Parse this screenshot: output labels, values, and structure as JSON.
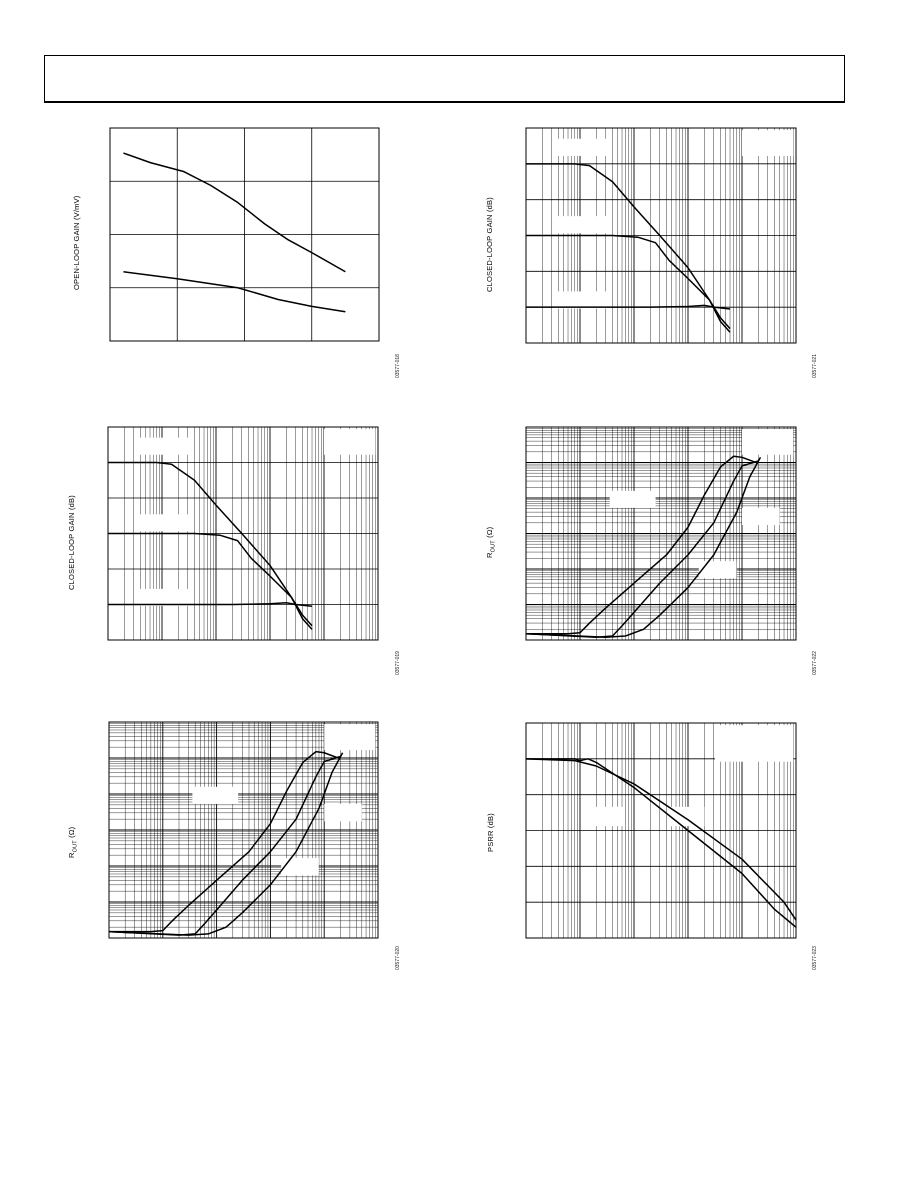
{
  "page": {
    "figure_ids": [
      "03577-018",
      "03577-019",
      "03577-020",
      "03577-021",
      "03577-022",
      "03577-023"
    ]
  },
  "chart_data": [
    {
      "id": "p1",
      "type": "line",
      "ylabel": "OPEN-LOOP GAIN (V/mV)",
      "figure_id": "03577-018",
      "xscale": "linear",
      "yscale": "linear",
      "grid": true,
      "xlim": [
        0,
        4
      ],
      "ylim": [
        0,
        4
      ],
      "xgrid": [
        1,
        2,
        3
      ],
      "ygrid": [
        1,
        2,
        3
      ],
      "series": [
        {
          "x": [
            0.2,
            0.6,
            1.1,
            1.5,
            1.9,
            2.3,
            2.65,
            3.0,
            3.5
          ],
          "y": [
            3.53,
            3.35,
            3.18,
            2.92,
            2.6,
            2.2,
            1.9,
            1.66,
            1.3
          ]
        },
        {
          "x": [
            0.2,
            1.0,
            1.9,
            2.5,
            3.0,
            3.5
          ],
          "y": [
            1.3,
            1.17,
            1.0,
            0.78,
            0.65,
            0.55
          ]
        }
      ],
      "annotation_boxes": []
    },
    {
      "id": "p2",
      "type": "line",
      "ylabel": "CLOSED-LOOP GAIN (dB)",
      "figure_id": "03577-019",
      "xscale": "log",
      "yscale": "linear",
      "grid": true,
      "xlim": [
        1000,
        100000000
      ],
      "ylim": [
        -10,
        50
      ],
      "ymajor": 10,
      "series": [
        {
          "x": [
            1000,
            8000,
            15000,
            40000,
            100000,
            300000,
            1000000,
            2500000,
            4000000,
            6000000
          ],
          "y": [
            40,
            40,
            39.5,
            35,
            28,
            20,
            11,
            2,
            -4,
            -7
          ]
        },
        {
          "x": [
            1000,
            40000,
            120000,
            250000,
            450000,
            1000000,
            2500000,
            4000000,
            6000000
          ],
          "y": [
            20,
            20,
            19.5,
            18,
            13,
            8,
            2,
            -3,
            -6
          ]
        },
        {
          "x": [
            1000,
            200000,
            1000000,
            2000000,
            3000000,
            6000000
          ],
          "y": [
            0,
            0,
            0.2,
            0.5,
            0,
            -0.5
          ]
        }
      ],
      "annotation_boxes": [
        {
          "xf": 0.1,
          "yf": 0.05,
          "wf": 0.2,
          "hf": 0.08
        },
        {
          "xf": 0.1,
          "yf": 0.41,
          "wf": 0.2,
          "hf": 0.08
        },
        {
          "xf": 0.1,
          "yf": 0.76,
          "wf": 0.2,
          "hf": 0.08
        },
        {
          "xf": 0.8,
          "yf": 0.01,
          "wf": 0.19,
          "hf": 0.12
        }
      ]
    },
    {
      "id": "p3",
      "type": "line",
      "ylabel": "R",
      "ylabel_sub": "OUT",
      "ylabel_unit": " (Ω)",
      "figure_id": "03577-020",
      "xscale": "log",
      "yscale": "log",
      "grid": true,
      "xlim": [
        1000,
        100000000
      ],
      "ylim": [
        0.001,
        1000
      ],
      "series": [
        {
          "x": [
            1000,
            6000,
            10000,
            15000,
            30000,
            100000,
            400000,
            1000000,
            2000000,
            4000000,
            7000000,
            10000000,
            20000000
          ],
          "y": [
            0.0015,
            0.0015,
            0.0016,
            0.003,
            0.008,
            0.04,
            0.25,
            1.5,
            12,
            75,
            150,
            140,
            95
          ]
        },
        {
          "x": [
            1000,
            20000,
            40000,
            60000,
            100000,
            300000,
            1000000,
            3000000,
            7000000,
            10000000,
            20000000
          ],
          "y": [
            0.0015,
            0.0012,
            0.0013,
            0.0025,
            0.006,
            0.04,
            0.25,
            2,
            30,
            80,
            110
          ]
        },
        {
          "x": [
            1000,
            30000,
            70000,
            150000,
            300000,
            1000000,
            3000000,
            8000000,
            14000000,
            22000000
          ],
          "y": [
            0.0015,
            0.0012,
            0.0013,
            0.002,
            0.005,
            0.03,
            0.25,
            4,
            40,
            140
          ]
        }
      ],
      "annotation_boxes": [
        {
          "xf": 0.31,
          "yf": 0.3,
          "wf": 0.17,
          "hf": 0.08
        },
        {
          "xf": 0.8,
          "yf": 0.01,
          "wf": 0.19,
          "hf": 0.12
        },
        {
          "xf": 0.8,
          "yf": 0.38,
          "wf": 0.14,
          "hf": 0.08
        },
        {
          "xf": 0.64,
          "yf": 0.63,
          "wf": 0.14,
          "hf": 0.08
        }
      ]
    },
    {
      "id": "p4",
      "type": "line",
      "ylabel": "CLOSED-LOOP GAIN (dB)",
      "figure_id": "03577-021",
      "xscale": "log",
      "yscale": "linear",
      "grid": true,
      "xlim": [
        1000,
        100000000
      ],
      "ylim": [
        -10,
        50
      ],
      "ymajor": 10,
      "series": [
        {
          "x": [
            1000,
            8000,
            15000,
            40000,
            100000,
            300000,
            1000000,
            2500000,
            4000000,
            6000000
          ],
          "y": [
            40,
            40,
            39.5,
            35,
            28,
            20,
            11,
            2,
            -4,
            -7
          ]
        },
        {
          "x": [
            1000,
            40000,
            120000,
            250000,
            450000,
            1000000,
            2500000,
            4000000,
            6000000
          ],
          "y": [
            20,
            20,
            19.5,
            18,
            13,
            8,
            2,
            -3,
            -6
          ]
        },
        {
          "x": [
            1000,
            200000,
            1000000,
            2000000,
            3000000,
            6000000
          ],
          "y": [
            0,
            0,
            0.2,
            0.5,
            0,
            -0.5
          ]
        }
      ],
      "annotation_boxes": [
        {
          "xf": 0.1,
          "yf": 0.05,
          "wf": 0.2,
          "hf": 0.08
        },
        {
          "xf": 0.1,
          "yf": 0.41,
          "wf": 0.2,
          "hf": 0.08
        },
        {
          "xf": 0.1,
          "yf": 0.76,
          "wf": 0.2,
          "hf": 0.08
        },
        {
          "xf": 0.8,
          "yf": 0.01,
          "wf": 0.19,
          "hf": 0.12
        }
      ]
    },
    {
      "id": "p5",
      "type": "line",
      "ylabel": "R",
      "ylabel_sub": "OUT",
      "ylabel_unit": " (Ω)",
      "figure_id": "03577-022",
      "xscale": "log",
      "yscale": "log",
      "grid": true,
      "xlim": [
        1000,
        100000000
      ],
      "ylim": [
        0.001,
        1000
      ],
      "series": [
        {
          "x": [
            1000,
            6000,
            10000,
            15000,
            30000,
            100000,
            400000,
            1000000,
            2000000,
            4000000,
            7000000,
            10000000,
            20000000
          ],
          "y": [
            0.0015,
            0.0015,
            0.0016,
            0.003,
            0.008,
            0.04,
            0.25,
            1.5,
            12,
            75,
            150,
            140,
            95
          ]
        },
        {
          "x": [
            1000,
            20000,
            40000,
            60000,
            100000,
            300000,
            1000000,
            3000000,
            7000000,
            10000000,
            20000000
          ],
          "y": [
            0.0015,
            0.0012,
            0.0013,
            0.0025,
            0.006,
            0.04,
            0.25,
            2,
            30,
            80,
            110
          ]
        },
        {
          "x": [
            1000,
            30000,
            70000,
            150000,
            300000,
            1000000,
            3000000,
            8000000,
            14000000,
            22000000
          ],
          "y": [
            0.0015,
            0.0012,
            0.0013,
            0.002,
            0.005,
            0.03,
            0.25,
            4,
            40,
            140
          ]
        }
      ],
      "annotation_boxes": [
        {
          "xf": 0.31,
          "yf": 0.3,
          "wf": 0.17,
          "hf": 0.08
        },
        {
          "xf": 0.8,
          "yf": 0.01,
          "wf": 0.19,
          "hf": 0.12
        },
        {
          "xf": 0.8,
          "yf": 0.38,
          "wf": 0.14,
          "hf": 0.08
        },
        {
          "xf": 0.64,
          "yf": 0.63,
          "wf": 0.14,
          "hf": 0.08
        }
      ]
    },
    {
      "id": "p6",
      "type": "line",
      "ylabel": "PSRR (dB)",
      "figure_id": "03577-023",
      "xscale": "log",
      "yscale": "linear",
      "grid": true,
      "xlim": [
        1000,
        100000000
      ],
      "ylim": [
        0,
        60
      ],
      "ymajor": 10,
      "series": [
        {
          "x": [
            1000,
            8000,
            20000,
            100000,
            1000000,
            10000000,
            60000000,
            100000000
          ],
          "y": [
            50,
            49.5,
            48,
            43,
            33,
            22,
            10,
            5
          ]
        },
        {
          "x": [
            1000,
            8000,
            10000,
            14000,
            20000,
            100000,
            1000000,
            10000000,
            40000000,
            100000000
          ],
          "y": [
            50,
            50,
            49.5,
            50,
            49,
            42,
            30,
            18,
            8,
            3
          ]
        }
      ],
      "annotation_boxes": [
        {
          "xf": 0.7,
          "yf": 0.01,
          "wf": 0.29,
          "hf": 0.17
        },
        {
          "xf": 0.23,
          "yf": 0.39,
          "wf": 0.13,
          "hf": 0.09
        },
        {
          "xf": 0.53,
          "yf": 0.39,
          "wf": 0.13,
          "hf": 0.09
        }
      ]
    }
  ]
}
